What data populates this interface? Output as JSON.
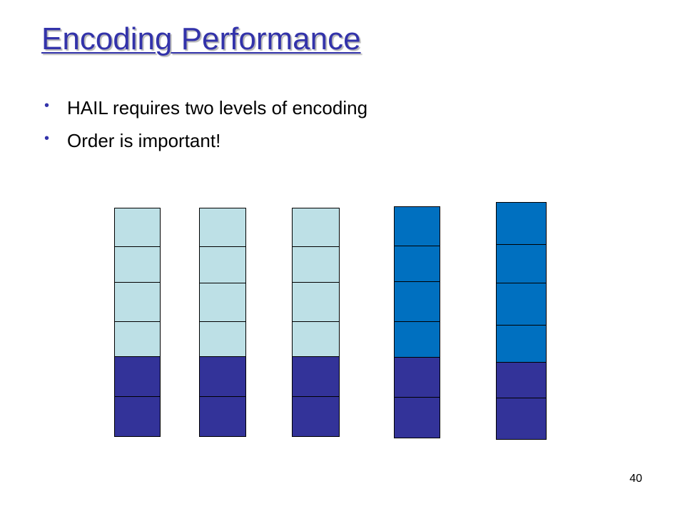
{
  "slide": {
    "title": "Encoding Performance",
    "bullets": [
      "HAIL requires two levels of encoding",
      "Order is important!"
    ],
    "page_number": "40"
  },
  "diagram": {
    "colors": {
      "light": "#bde0e6",
      "bright": "#0070c0",
      "dark": "#333399"
    },
    "stacks": [
      {
        "blocks": [
          "light",
          "light",
          "light",
          "light",
          "dark",
          "dark"
        ]
      },
      {
        "blocks": [
          "light",
          "light",
          "light",
          "light",
          "dark",
          "dark"
        ]
      },
      {
        "blocks": [
          "light",
          "light",
          "light",
          "light",
          "dark",
          "dark"
        ]
      },
      {
        "blocks": [
          "bright",
          "bright",
          "bright",
          "bright",
          "dark",
          "dark"
        ]
      },
      {
        "blocks": [
          "bright",
          "bright",
          "bright",
          "bright",
          "dark",
          "dark"
        ]
      }
    ]
  }
}
